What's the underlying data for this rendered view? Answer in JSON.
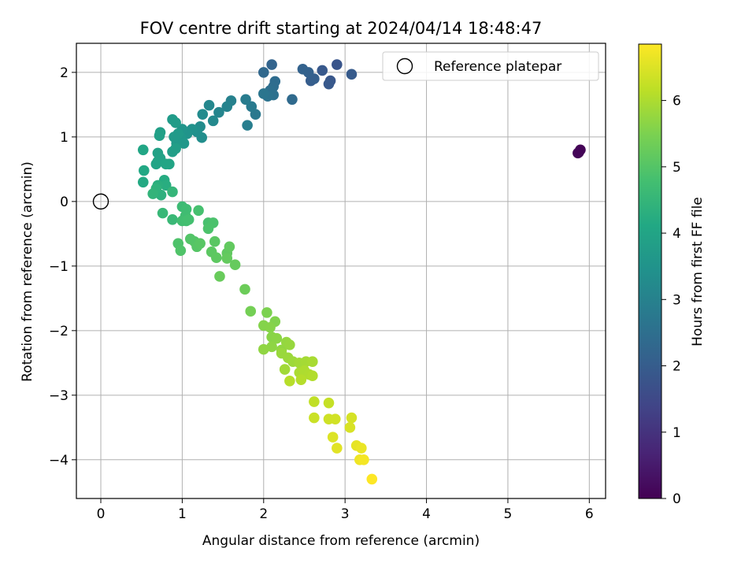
{
  "chart_data": {
    "type": "scatter",
    "title": "FOV centre drift starting at 2024/04/14 18:48:47",
    "xlabel": "Angular distance from reference (arcmin)",
    "ylabel": "Rotation from reference (arcmin)",
    "xlim": [
      -0.3,
      6.2
    ],
    "ylim": [
      -4.6,
      2.45
    ],
    "xticks": [
      0,
      1,
      2,
      3,
      4,
      5,
      6
    ],
    "yticks": [
      -4,
      -3,
      -2,
      -1,
      0,
      1,
      2
    ],
    "xtick_labels": [
      "0",
      "1",
      "2",
      "3",
      "4",
      "5",
      "6"
    ],
    "ytick_labels": [
      "−4",
      "−3",
      "−2",
      "−1",
      "0",
      "1",
      "2"
    ],
    "grid": true,
    "legend": {
      "placement": "top-right",
      "entries": [
        {
          "label": "Reference platepar",
          "marker": "open-circle"
        }
      ]
    },
    "reference_point": {
      "x": 0,
      "y": 0
    },
    "colorbar": {
      "label": "Hours from first FF file",
      "colormap": "viridis",
      "range": [
        0,
        6.85
      ],
      "ticks": [
        0,
        1,
        2,
        3,
        4,
        5,
        6
      ],
      "tick_labels": [
        "0",
        "1",
        "2",
        "3",
        "4",
        "5",
        "6"
      ]
    },
    "points": [
      {
        "x": 5.87,
        "y": 0.76,
        "t": 0.02
      },
      {
        "x": 5.89,
        "y": 0.8,
        "t": 0.05
      },
      {
        "x": 5.86,
        "y": 0.75,
        "t": 0.08
      },
      {
        "x": 2.9,
        "y": 2.12,
        "t": 1.8
      },
      {
        "x": 2.72,
        "y": 2.03,
        "t": 1.9
      },
      {
        "x": 3.08,
        "y": 1.97,
        "t": 1.95
      },
      {
        "x": 2.82,
        "y": 1.87,
        "t": 1.85
      },
      {
        "x": 2.8,
        "y": 1.82,
        "t": 1.9
      },
      {
        "x": 2.58,
        "y": 1.87,
        "t": 2.0
      },
      {
        "x": 2.62,
        "y": 1.9,
        "t": 2.05
      },
      {
        "x": 2.55,
        "y": 2.0,
        "t": 2.1
      },
      {
        "x": 2.48,
        "y": 2.05,
        "t": 2.15
      },
      {
        "x": 2.1,
        "y": 2.12,
        "t": 2.2
      },
      {
        "x": 2.0,
        "y": 2.0,
        "t": 2.3
      },
      {
        "x": 2.35,
        "y": 1.58,
        "t": 2.35
      },
      {
        "x": 2.14,
        "y": 1.86,
        "t": 2.4
      },
      {
        "x": 2.12,
        "y": 1.78,
        "t": 2.45
      },
      {
        "x": 2.08,
        "y": 1.72,
        "t": 2.5
      },
      {
        "x": 2.12,
        "y": 1.65,
        "t": 2.55
      },
      {
        "x": 2.05,
        "y": 1.63,
        "t": 2.6
      },
      {
        "x": 2.0,
        "y": 1.67,
        "t": 2.65
      },
      {
        "x": 1.9,
        "y": 1.35,
        "t": 2.75
      },
      {
        "x": 1.85,
        "y": 1.47,
        "t": 2.8
      },
      {
        "x": 1.78,
        "y": 1.58,
        "t": 2.85
      },
      {
        "x": 1.8,
        "y": 1.18,
        "t": 2.9
      },
      {
        "x": 1.6,
        "y": 1.56,
        "t": 3.0
      },
      {
        "x": 1.55,
        "y": 1.47,
        "t": 3.05
      },
      {
        "x": 1.45,
        "y": 1.38,
        "t": 3.1
      },
      {
        "x": 1.33,
        "y": 1.49,
        "t": 3.15
      },
      {
        "x": 1.38,
        "y": 1.25,
        "t": 3.2
      },
      {
        "x": 1.25,
        "y": 1.35,
        "t": 3.25
      },
      {
        "x": 1.22,
        "y": 1.16,
        "t": 3.3
      },
      {
        "x": 1.24,
        "y": 0.99,
        "t": 3.35
      },
      {
        "x": 1.18,
        "y": 1.08,
        "t": 3.4
      },
      {
        "x": 1.12,
        "y": 1.12,
        "t": 3.45
      },
      {
        "x": 1.06,
        "y": 1.05,
        "t": 3.5
      },
      {
        "x": 1.0,
        "y": 1.12,
        "t": 3.55
      },
      {
        "x": 0.98,
        "y": 1.0,
        "t": 3.6
      },
      {
        "x": 1.02,
        "y": 0.9,
        "t": 3.62
      },
      {
        "x": 0.93,
        "y": 0.9,
        "t": 3.65
      },
      {
        "x": 0.95,
        "y": 1.05,
        "t": 3.68
      },
      {
        "x": 0.9,
        "y": 1.0,
        "t": 3.7
      },
      {
        "x": 0.88,
        "y": 1.27,
        "t": 3.72
      },
      {
        "x": 0.92,
        "y": 1.22,
        "t": 3.75
      },
      {
        "x": 0.88,
        "y": 0.77,
        "t": 3.8
      },
      {
        "x": 0.92,
        "y": 0.82,
        "t": 3.82
      },
      {
        "x": 0.73,
        "y": 1.07,
        "t": 3.85
      },
      {
        "x": 0.72,
        "y": 1.02,
        "t": 3.88
      },
      {
        "x": 0.7,
        "y": 0.75,
        "t": 3.9
      },
      {
        "x": 0.73,
        "y": 0.67,
        "t": 3.92
      },
      {
        "x": 0.7,
        "y": 0.62,
        "t": 3.95
      },
      {
        "x": 0.68,
        "y": 0.58,
        "t": 3.98
      },
      {
        "x": 0.84,
        "y": 0.58,
        "t": 4.0
      },
      {
        "x": 0.8,
        "y": 0.58,
        "t": 4.02
      },
      {
        "x": 0.52,
        "y": 0.8,
        "t": 4.05
      },
      {
        "x": 0.53,
        "y": 0.48,
        "t": 4.1
      },
      {
        "x": 0.52,
        "y": 0.3,
        "t": 4.15
      },
      {
        "x": 0.78,
        "y": 0.33,
        "t": 4.2
      },
      {
        "x": 0.8,
        "y": 0.25,
        "t": 4.25
      },
      {
        "x": 0.7,
        "y": 0.25,
        "t": 4.3
      },
      {
        "x": 0.74,
        "y": 0.1,
        "t": 4.35
      },
      {
        "x": 0.68,
        "y": 0.2,
        "t": 4.4
      },
      {
        "x": 0.64,
        "y": 0.12,
        "t": 4.45
      },
      {
        "x": 0.88,
        "y": 0.15,
        "t": 4.5
      },
      {
        "x": 0.76,
        "y": -0.18,
        "t": 4.55
      },
      {
        "x": 0.88,
        "y": -0.28,
        "t": 4.6
      },
      {
        "x": 1.0,
        "y": -0.08,
        "t": 4.65
      },
      {
        "x": 1.05,
        "y": -0.12,
        "t": 4.7
      },
      {
        "x": 1.04,
        "y": -0.22,
        "t": 4.72
      },
      {
        "x": 1.0,
        "y": -0.3,
        "t": 4.75
      },
      {
        "x": 1.05,
        "y": -0.3,
        "t": 4.78
      },
      {
        "x": 1.08,
        "y": -0.28,
        "t": 4.8
      },
      {
        "x": 1.2,
        "y": -0.14,
        "t": 4.82
      },
      {
        "x": 1.32,
        "y": -0.33,
        "t": 4.85
      },
      {
        "x": 1.38,
        "y": -0.33,
        "t": 4.88
      },
      {
        "x": 1.32,
        "y": -0.42,
        "t": 4.9
      },
      {
        "x": 0.95,
        "y": -0.65,
        "t": 4.92
      },
      {
        "x": 0.98,
        "y": -0.76,
        "t": 4.95
      },
      {
        "x": 1.1,
        "y": -0.58,
        "t": 4.98
      },
      {
        "x": 1.15,
        "y": -0.62,
        "t": 5.0
      },
      {
        "x": 1.18,
        "y": -0.7,
        "t": 5.02
      },
      {
        "x": 1.22,
        "y": -0.65,
        "t": 5.05
      },
      {
        "x": 1.4,
        "y": -0.62,
        "t": 5.08
      },
      {
        "x": 1.36,
        "y": -0.78,
        "t": 5.1
      },
      {
        "x": 1.42,
        "y": -0.87,
        "t": 5.12
      },
      {
        "x": 1.55,
        "y": -0.8,
        "t": 5.15
      },
      {
        "x": 1.58,
        "y": -0.7,
        "t": 5.18
      },
      {
        "x": 1.55,
        "y": -0.88,
        "t": 5.2
      },
      {
        "x": 1.65,
        "y": -0.98,
        "t": 5.22
      },
      {
        "x": 1.46,
        "y": -1.16,
        "t": 5.25
      },
      {
        "x": 1.77,
        "y": -1.36,
        "t": 5.3
      },
      {
        "x": 1.84,
        "y": -1.7,
        "t": 5.4
      },
      {
        "x": 2.04,
        "y": -1.72,
        "t": 5.5
      },
      {
        "x": 2.14,
        "y": -1.86,
        "t": 5.55
      },
      {
        "x": 2.0,
        "y": -1.92,
        "t": 5.58
      },
      {
        "x": 2.08,
        "y": -1.95,
        "t": 5.6
      },
      {
        "x": 2.1,
        "y": -2.1,
        "t": 5.62
      },
      {
        "x": 2.16,
        "y": -2.12,
        "t": 5.65
      },
      {
        "x": 2.1,
        "y": -2.25,
        "t": 5.68
      },
      {
        "x": 2.0,
        "y": -2.29,
        "t": 5.7
      },
      {
        "x": 2.22,
        "y": -2.3,
        "t": 5.72
      },
      {
        "x": 2.28,
        "y": -2.18,
        "t": 5.75
      },
      {
        "x": 2.32,
        "y": -2.22,
        "t": 5.78
      },
      {
        "x": 2.22,
        "y": -2.35,
        "t": 5.8
      },
      {
        "x": 2.3,
        "y": -2.42,
        "t": 5.82
      },
      {
        "x": 2.36,
        "y": -2.48,
        "t": 5.85
      },
      {
        "x": 2.26,
        "y": -2.6,
        "t": 5.88
      },
      {
        "x": 2.44,
        "y": -2.5,
        "t": 5.9
      },
      {
        "x": 2.52,
        "y": -2.48,
        "t": 5.92
      },
      {
        "x": 2.6,
        "y": -2.48,
        "t": 5.95
      },
      {
        "x": 2.44,
        "y": -2.65,
        "t": 5.98
      },
      {
        "x": 2.5,
        "y": -2.62,
        "t": 6.0
      },
      {
        "x": 2.56,
        "y": -2.68,
        "t": 6.02
      },
      {
        "x": 2.6,
        "y": -2.7,
        "t": 6.05
      },
      {
        "x": 2.46,
        "y": -2.76,
        "t": 6.08
      },
      {
        "x": 2.32,
        "y": -2.78,
        "t": 6.1
      },
      {
        "x": 2.62,
        "y": -3.1,
        "t": 6.2
      },
      {
        "x": 2.8,
        "y": -3.12,
        "t": 6.25
      },
      {
        "x": 2.62,
        "y": -3.35,
        "t": 6.3
      },
      {
        "x": 2.8,
        "y": -3.37,
        "t": 6.35
      },
      {
        "x": 2.88,
        "y": -3.37,
        "t": 6.38
      },
      {
        "x": 3.08,
        "y": -3.35,
        "t": 6.42
      },
      {
        "x": 3.06,
        "y": -3.5,
        "t": 6.45
      },
      {
        "x": 2.85,
        "y": -3.65,
        "t": 6.5
      },
      {
        "x": 2.9,
        "y": -3.82,
        "t": 6.55
      },
      {
        "x": 3.14,
        "y": -3.78,
        "t": 6.6
      },
      {
        "x": 3.2,
        "y": -3.82,
        "t": 6.65
      },
      {
        "x": 3.18,
        "y": -4.0,
        "t": 6.7
      },
      {
        "x": 3.23,
        "y": -4.0,
        "t": 6.75
      },
      {
        "x": 3.33,
        "y": -4.3,
        "t": 6.85
      }
    ]
  }
}
